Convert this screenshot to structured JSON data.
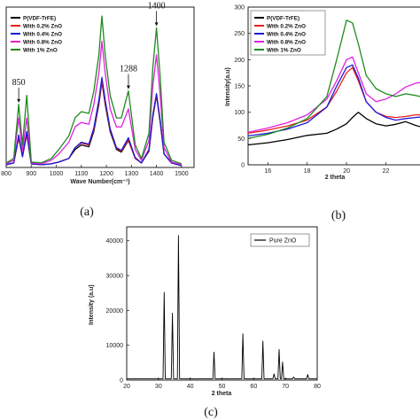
{
  "chart_data": [
    {
      "type": "line",
      "panel_label": "(a)",
      "xlabel": "Wave Number(cm⁻¹)",
      "ylabel": "",
      "xlim": [
        800,
        1550
      ],
      "x_ticks": [
        "800",
        "900",
        "1000",
        "1100",
        "1200",
        "1300",
        "1400",
        "1500"
      ],
      "legend_position": "top-left",
      "annotations": [
        {
          "text": "850",
          "x": 850
        },
        {
          "text": "1288",
          "x": 1288
        },
        {
          "text": "1400",
          "x": 1400
        }
      ],
      "series": [
        {
          "name": "P(VDF-TrFE)",
          "color": "#000000",
          "x": [
            800,
            830,
            850,
            865,
            882,
            900,
            940,
            980,
            1010,
            1050,
            1075,
            1100,
            1130,
            1150,
            1170,
            1182,
            1195,
            1215,
            1240,
            1260,
            1288,
            1315,
            1340,
            1370,
            1385,
            1400,
            1415,
            1430,
            1460,
            1500
          ],
          "values": [
            0.03,
            0.05,
            0.33,
            0.12,
            0.37,
            0.04,
            0.03,
            0.04,
            0.06,
            0.1,
            0.2,
            0.25,
            0.23,
            0.4,
            0.7,
            0.95,
            0.7,
            0.4,
            0.2,
            0.17,
            0.3,
            0.1,
            0.05,
            0.18,
            0.55,
            0.8,
            0.5,
            0.15,
            0.05,
            0.02
          ]
        },
        {
          "name": "With 0.2% ZnO",
          "color": "#e8201c",
          "x": [
            800,
            830,
            850,
            865,
            882,
            900,
            940,
            980,
            1010,
            1050,
            1075,
            1100,
            1130,
            1150,
            1170,
            1182,
            1195,
            1215,
            1240,
            1260,
            1288,
            1315,
            1340,
            1370,
            1385,
            1400,
            1415,
            1430,
            1460,
            1500
          ],
          "values": [
            0.03,
            0.05,
            0.34,
            0.12,
            0.38,
            0.04,
            0.03,
            0.04,
            0.06,
            0.1,
            0.22,
            0.27,
            0.25,
            0.42,
            0.72,
            0.96,
            0.72,
            0.42,
            0.21,
            0.18,
            0.31,
            0.1,
            0.05,
            0.19,
            0.56,
            0.81,
            0.51,
            0.15,
            0.05,
            0.02
          ]
        },
        {
          "name": "With 0.4% ZnO",
          "color": "#1a1ad8",
          "x": [
            800,
            830,
            850,
            865,
            882,
            900,
            940,
            980,
            1010,
            1050,
            1075,
            1100,
            1130,
            1150,
            1170,
            1182,
            1195,
            1215,
            1240,
            1260,
            1288,
            1315,
            1340,
            1370,
            1385,
            1400,
            1415,
            1430,
            1460,
            1500
          ],
          "values": [
            0.03,
            0.05,
            0.36,
            0.12,
            0.4,
            0.04,
            0.03,
            0.04,
            0.06,
            0.1,
            0.22,
            0.28,
            0.26,
            0.44,
            0.75,
            1.0,
            0.75,
            0.43,
            0.22,
            0.19,
            0.33,
            0.11,
            0.05,
            0.2,
            0.58,
            0.82,
            0.52,
            0.15,
            0.05,
            0.02
          ]
        },
        {
          "name": "With 0.8% ZnO",
          "color": "#e020e0",
          "x": [
            800,
            830,
            850,
            865,
            882,
            900,
            940,
            980,
            1010,
            1050,
            1075,
            1100,
            1130,
            1150,
            1170,
            1182,
            1195,
            1215,
            1240,
            1260,
            1288,
            1315,
            1340,
            1370,
            1385,
            1400,
            1415,
            1430,
            1460,
            1500
          ],
          "values": [
            0.04,
            0.08,
            0.55,
            0.18,
            0.55,
            0.05,
            0.04,
            0.08,
            0.15,
            0.28,
            0.45,
            0.5,
            0.48,
            0.7,
            1.05,
            1.4,
            1.05,
            0.65,
            0.45,
            0.45,
            0.65,
            0.2,
            0.08,
            0.3,
            0.9,
            1.25,
            0.8,
            0.22,
            0.06,
            0.03
          ]
        },
        {
          "name": "With 1% ZnO",
          "color": "#1e8a1e",
          "x": [
            800,
            830,
            850,
            865,
            882,
            900,
            940,
            980,
            1010,
            1050,
            1075,
            1100,
            1130,
            1150,
            1170,
            1182,
            1195,
            1215,
            1240,
            1260,
            1288,
            1315,
            1340,
            1370,
            1385,
            1400,
            1415,
            1430,
            1460,
            1500
          ],
          "values": [
            0.05,
            0.1,
            0.7,
            0.25,
            0.8,
            0.06,
            0.05,
            0.1,
            0.2,
            0.35,
            0.55,
            0.62,
            0.6,
            0.85,
            1.25,
            1.68,
            1.25,
            0.8,
            0.55,
            0.55,
            0.85,
            0.25,
            0.1,
            0.38,
            1.1,
            1.55,
            1.0,
            0.28,
            0.08,
            0.04
          ]
        }
      ]
    },
    {
      "type": "line",
      "panel_label": "(b)",
      "xlabel": "2 theta",
      "ylabel": "Intensity(a.u)",
      "xlim": [
        15,
        24
      ],
      "ylim": [
        0,
        300
      ],
      "x_ticks": [
        "16",
        "18",
        "20",
        "22",
        "2"
      ],
      "y_ticks": [
        "0",
        "50",
        "100",
        "150",
        "200",
        "250",
        "300"
      ],
      "legend_position": "top-left",
      "series": [
        {
          "name": "P(VDF-TrFE)",
          "color": "#000000",
          "x": [
            15,
            16,
            17,
            18,
            19,
            19.5,
            20,
            20.3,
            20.6,
            21,
            21.5,
            22,
            22.5,
            23,
            23.5,
            24
          ],
          "values": [
            38,
            42,
            48,
            56,
            60,
            68,
            78,
            90,
            100,
            88,
            78,
            74,
            77,
            82,
            75,
            70
          ]
        },
        {
          "name": "With 0.2% ZnO",
          "color": "#e8201c",
          "x": [
            15,
            16,
            17,
            18,
            19,
            19.5,
            20,
            20.3,
            20.6,
            21,
            21.5,
            22,
            22.5,
            23,
            23.5,
            24
          ],
          "values": [
            60,
            66,
            74,
            85,
            110,
            140,
            175,
            185,
            160,
            120,
            100,
            92,
            90,
            92,
            95,
            95
          ]
        },
        {
          "name": "With 0.4% ZnO",
          "color": "#1a1ad8",
          "x": [
            15,
            16,
            17,
            18,
            19,
            19.5,
            20,
            20.3,
            20.6,
            21,
            21.5,
            22,
            22.5,
            23,
            23.5,
            24
          ],
          "values": [
            55,
            60,
            68,
            80,
            110,
            150,
            185,
            190,
            165,
            120,
            100,
            90,
            85,
            88,
            90,
            92
          ]
        },
        {
          "name": "With 0.8% ZnO",
          "color": "#e020e0",
          "x": [
            15,
            16,
            17,
            18,
            19,
            19.5,
            20,
            20.3,
            20.6,
            21,
            21.5,
            22,
            22.5,
            23,
            23.5,
            24
          ],
          "values": [
            62,
            70,
            80,
            95,
            125,
            160,
            200,
            205,
            175,
            135,
            120,
            125,
            135,
            148,
            155,
            158
          ]
        },
        {
          "name": "With 1% ZnO",
          "color": "#1e8a1e",
          "x": [
            15,
            16,
            17,
            18,
            19,
            19.5,
            20,
            20.3,
            20.6,
            21,
            21.5,
            22,
            22.5,
            23,
            23.5,
            24
          ],
          "values": [
            50,
            58,
            70,
            88,
            130,
            200,
            275,
            270,
            230,
            170,
            145,
            135,
            130,
            135,
            132,
            128
          ]
        }
      ]
    },
    {
      "type": "line",
      "panel_label": "(c)",
      "xlabel": "2 theta",
      "ylabel": "Intensity (a.u)",
      "xlim": [
        20,
        80
      ],
      "ylim": [
        0,
        44000
      ],
      "x_ticks": [
        "20",
        "30",
        "40",
        "50",
        "60",
        "70",
        "80"
      ],
      "y_ticks": [
        "0",
        "10000",
        "20000",
        "30000",
        "40000"
      ],
      "legend_position": "top-right",
      "series": [
        {
          "name": "Pure ZnO",
          "color": "#000000",
          "peaks": [
            {
              "x": 31.8,
              "y": 25200
            },
            {
              "x": 34.4,
              "y": 19200
            },
            {
              "x": 36.3,
              "y": 41500
            },
            {
              "x": 47.5,
              "y": 8000
            },
            {
              "x": 56.6,
              "y": 13300
            },
            {
              "x": 62.9,
              "y": 11200
            },
            {
              "x": 66.4,
              "y": 1800
            },
            {
              "x": 68.0,
              "y": 8800
            },
            {
              "x": 69.1,
              "y": 5200
            },
            {
              "x": 72.6,
              "y": 900
            },
            {
              "x": 77.0,
              "y": 1600
            }
          ],
          "baseline": 400
        }
      ]
    }
  ]
}
